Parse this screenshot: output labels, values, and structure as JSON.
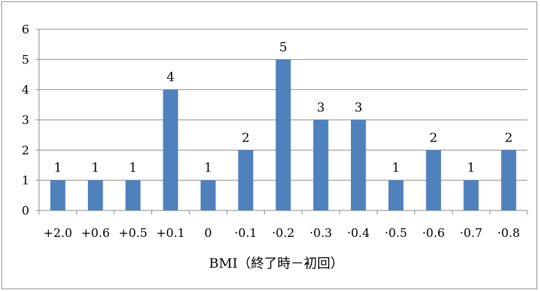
{
  "chart_data": {
    "type": "bar",
    "categories": [
      "+2.0",
      "+0.6",
      "+0.5",
      "+0.1",
      "0",
      "-0.1",
      "-0.2",
      "-0.3",
      "-0.4",
      "-0.5",
      "-0.6",
      "-0.7",
      "-0.8"
    ],
    "category_labels": [
      "+2.0",
      "+0.6",
      "+0.5",
      "+0.1",
      "0",
      "·0.1",
      "·0.2",
      "·0.3",
      "·0.4",
      "·0.5",
      "·0.6",
      "·0.7",
      "·0.8"
    ],
    "values": [
      1,
      1,
      1,
      4,
      1,
      2,
      5,
      3,
      3,
      1,
      2,
      1,
      2
    ],
    "data_labels": [
      "1",
      "1",
      "1",
      "4",
      "1",
      "2",
      "5",
      "3",
      "3",
      "1",
      "2",
      "1",
      "2"
    ],
    "title": "",
    "xlabel": "BMI（終了時－初回）",
    "ylabel": "",
    "ylim": [
      0,
      6
    ],
    "yticks": [
      "0",
      "1",
      "2",
      "3",
      "4",
      "5",
      "6"
    ],
    "grid": true,
    "legend": "none",
    "colors": {
      "bar": "#4f81bd",
      "grid": "#868686",
      "axis": "#868686"
    }
  }
}
